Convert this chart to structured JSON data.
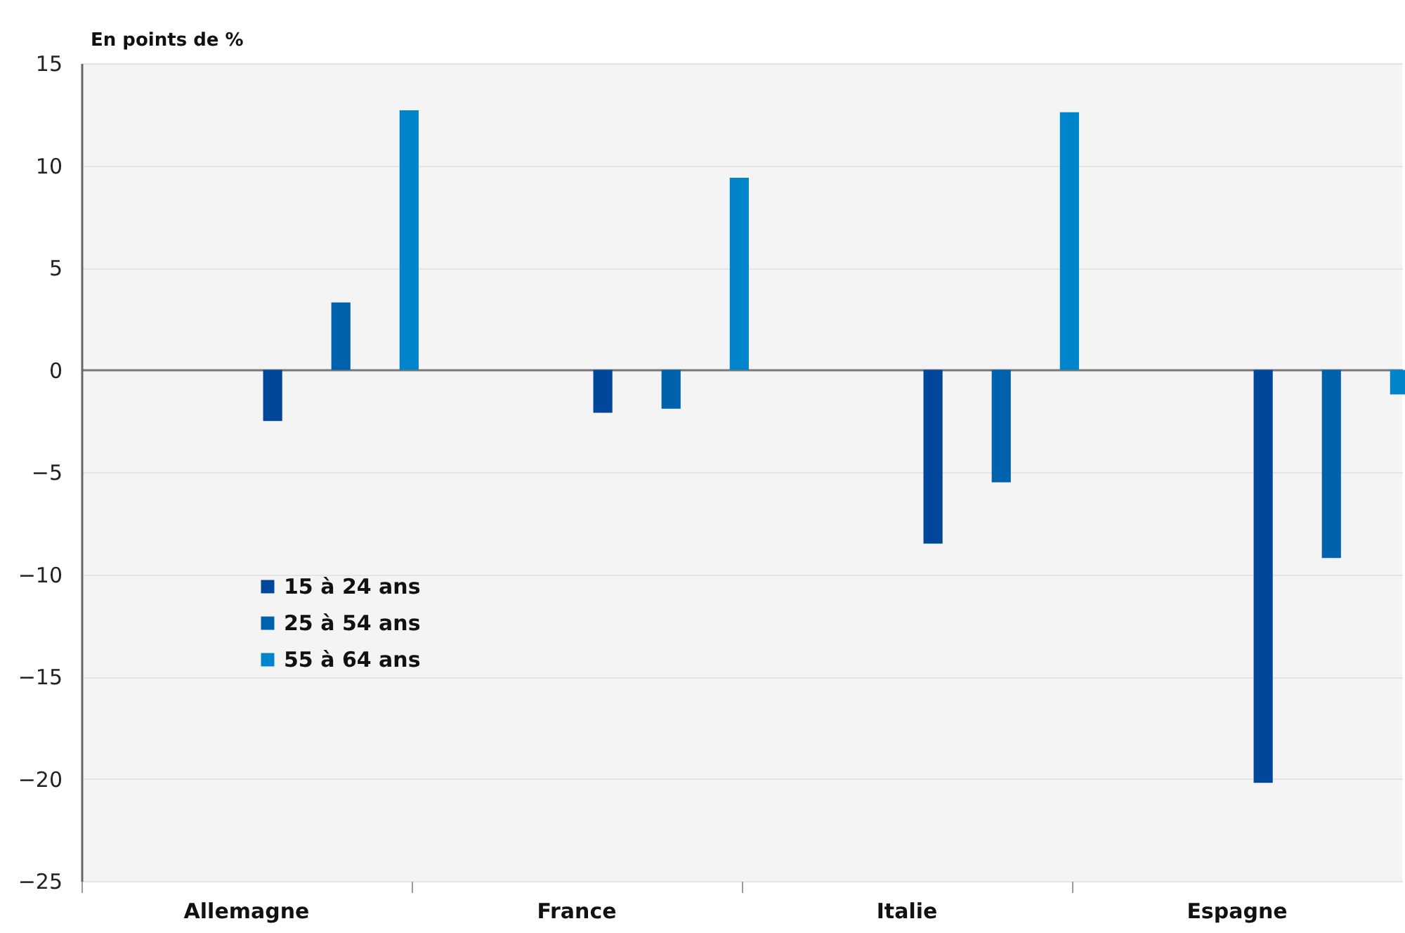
{
  "chart_data": {
    "type": "bar",
    "ylabel": "En points de %",
    "categories": [
      "Allemagne",
      "France",
      "Italie",
      "Espagne"
    ],
    "series": [
      {
        "name": "15 à 24 ans",
        "color": "#00479b",
        "values": [
          -2.5,
          -2.1,
          -8.5,
          -20.2
        ]
      },
      {
        "name": "25 à 54 ans",
        "color": "#0062ad",
        "values": [
          3.3,
          -1.9,
          -5.5,
          -9.2
        ]
      },
      {
        "name": "55 à 64 ans",
        "color": "#0085cc",
        "values": [
          12.7,
          9.4,
          12.6,
          -1.2
        ]
      }
    ],
    "ylim": [
      -25,
      15
    ],
    "yticks": [
      -25,
      -20,
      -15,
      -10,
      -5,
      0,
      5,
      10,
      15
    ],
    "grid": "y",
    "legend": "left"
  }
}
